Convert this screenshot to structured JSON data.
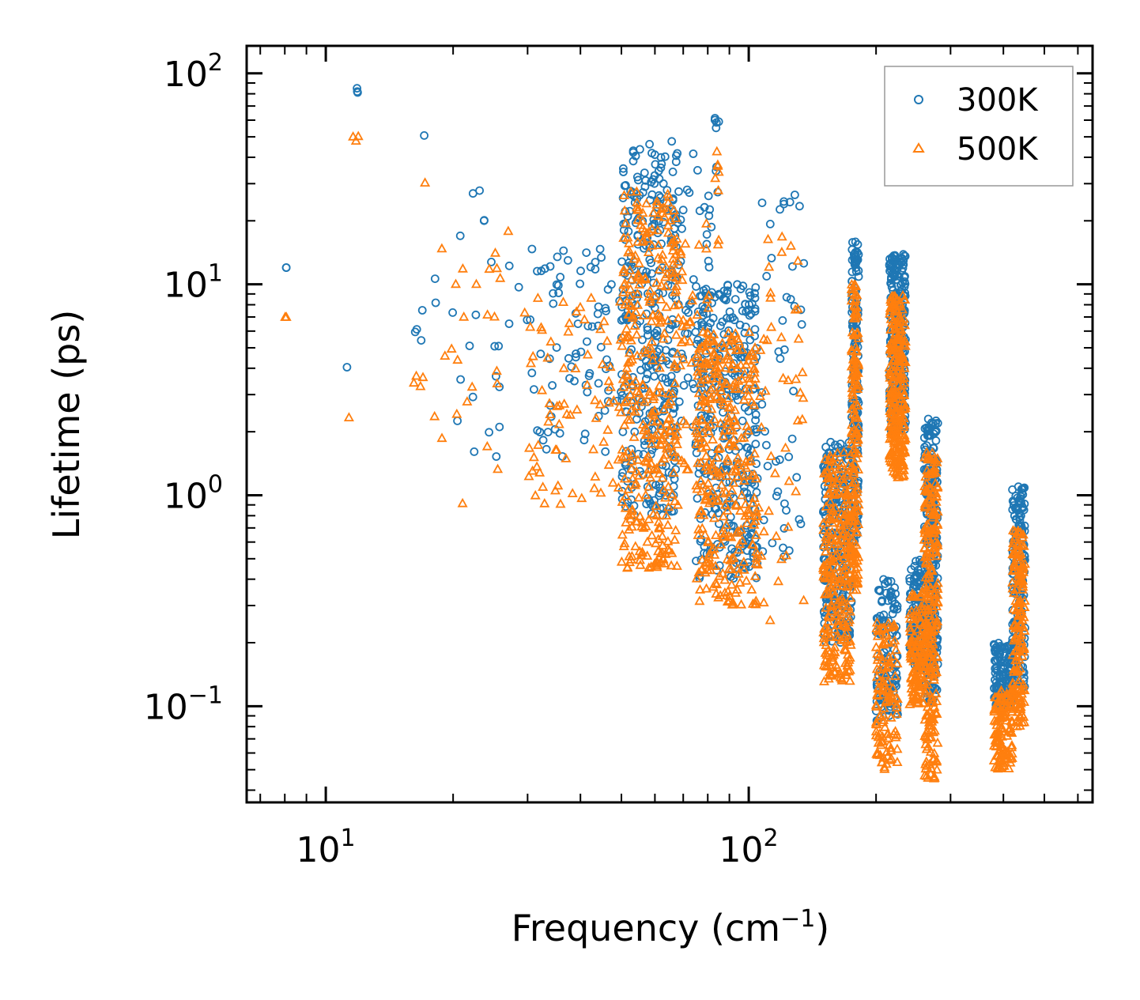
{
  "chart_data": {
    "type": "scatter",
    "title": "",
    "xlabel": "Frequency (cm",
    "xlabel_sup": "−1",
    "xlabel_end": ")",
    "ylabel": "Lifetime (ps)",
    "xscale": "log",
    "yscale": "log",
    "xlim": [
      6.5,
      650
    ],
    "ylim": [
      0.035,
      135
    ],
    "x_ticks": [
      {
        "value": 10,
        "base": "10",
        "exp": "1"
      },
      {
        "value": 100,
        "base": "10",
        "exp": "2"
      }
    ],
    "y_ticks": [
      {
        "value": 0.1,
        "base": "10",
        "exp": "−1"
      },
      {
        "value": 1,
        "base": "10",
        "exp": "0"
      },
      {
        "value": 10,
        "base": "10",
        "exp": "1"
      },
      {
        "value": 100,
        "base": "10",
        "exp": "2"
      }
    ],
    "legend_position": "top-right",
    "series": [
      {
        "name": "300K",
        "marker": "circle",
        "color": "#1f77b4",
        "points": []
      },
      {
        "name": "500K",
        "marker": "triangle",
        "color": "#ff7f0e",
        "points": []
      }
    ],
    "clusters": [
      {
        "series": 0,
        "x": [
          8,
          8.1
        ],
        "y": [
          12,
          12
        ],
        "n": 2
      },
      {
        "series": 1,
        "x": [
          8,
          8.1
        ],
        "y": [
          7,
          7
        ],
        "n": 2
      },
      {
        "series": 0,
        "x": [
          11.5,
          12
        ],
        "y": [
          80,
          86
        ],
        "n": 3
      },
      {
        "series": 1,
        "x": [
          11.5,
          12
        ],
        "y": [
          47,
          51
        ],
        "n": 3
      },
      {
        "series": 0,
        "x": [
          11.2,
          11.4
        ],
        "y": [
          4,
          4.1
        ],
        "n": 1
      },
      {
        "series": 1,
        "x": [
          11.2,
          11.4
        ],
        "y": [
          2.3,
          2.4
        ],
        "n": 1
      },
      {
        "series": 0,
        "x": [
          16,
          17
        ],
        "y": [
          5,
          8
        ],
        "n": 4
      },
      {
        "series": 1,
        "x": [
          16,
          17
        ],
        "y": [
          3,
          4.5
        ],
        "n": 4
      },
      {
        "series": 0,
        "x": [
          17,
          17.2
        ],
        "y": [
          49,
          51
        ],
        "n": 1
      },
      {
        "series": 1,
        "x": [
          17,
          17.2
        ],
        "y": [
          30,
          31
        ],
        "n": 1
      },
      {
        "series": 0,
        "x": [
          18,
          30
        ],
        "y": [
          1.5,
          32
        ],
        "n": 26
      },
      {
        "series": 1,
        "x": [
          18,
          30
        ],
        "y": [
          0.9,
          18
        ],
        "n": 26
      },
      {
        "series": 0,
        "x": [
          30,
          52
        ],
        "y": [
          1.5,
          15
        ],
        "n": 80
      },
      {
        "series": 1,
        "x": [
          30,
          52
        ],
        "y": [
          0.9,
          9
        ],
        "n": 80
      },
      {
        "series": 0,
        "x": [
          50,
          68
        ],
        "y": [
          0.8,
          48
        ],
        "n": 340
      },
      {
        "series": 1,
        "x": [
          50,
          68
        ],
        "y": [
          0.45,
          28
        ],
        "n": 340
      },
      {
        "series": 0,
        "x": [
          68,
          82
        ],
        "y": [
          1.5,
          42
        ],
        "n": 50
      },
      {
        "series": 1,
        "x": [
          68,
          82
        ],
        "y": [
          1,
          22
        ],
        "n": 50
      },
      {
        "series": 0,
        "x": [
          83,
          85
        ],
        "y": [
          25,
          70
        ],
        "n": 8
      },
      {
        "series": 1,
        "x": [
          83,
          85
        ],
        "y": [
          15,
          43
        ],
        "n": 8
      },
      {
        "series": 0,
        "x": [
          75,
          105
        ],
        "y": [
          0.4,
          10
        ],
        "n": 320
      },
      {
        "series": 1,
        "x": [
          75,
          105
        ],
        "y": [
          0.3,
          6
        ],
        "n": 320
      },
      {
        "series": 0,
        "x": [
          105,
          135
        ],
        "y": [
          0.45,
          27
        ],
        "n": 45
      },
      {
        "series": 1,
        "x": [
          105,
          135
        ],
        "y": [
          0.25,
          17
        ],
        "n": 45
      },
      {
        "series": 0,
        "x": [
          150,
          175
        ],
        "y": [
          0.2,
          1.8
        ],
        "n": 260
      },
      {
        "series": 1,
        "x": [
          150,
          175
        ],
        "y": [
          0.13,
          1.6
        ],
        "n": 260
      },
      {
        "series": 0,
        "x": [
          175,
          182
        ],
        "y": [
          0.6,
          16
        ],
        "n": 160
      },
      {
        "series": 1,
        "x": [
          175,
          182
        ],
        "y": [
          0.35,
          10
        ],
        "n": 160
      },
      {
        "series": 0,
        "x": [
          200,
          225
        ],
        "y": [
          0.085,
          0.4
        ],
        "n": 120
      },
      {
        "series": 1,
        "x": [
          200,
          225
        ],
        "y": [
          0.05,
          0.25
        ],
        "n": 120
      },
      {
        "series": 0,
        "x": [
          215,
          235
        ],
        "y": [
          2,
          14
        ],
        "n": 260
      },
      {
        "series": 1,
        "x": [
          215,
          235
        ],
        "y": [
          1.2,
          9
        ],
        "n": 260
      },
      {
        "series": 0,
        "x": [
          240,
          260
        ],
        "y": [
          0.15,
          0.5
        ],
        "n": 120
      },
      {
        "series": 1,
        "x": [
          240,
          260
        ],
        "y": [
          0.1,
          0.35
        ],
        "n": 120
      },
      {
        "series": 0,
        "x": [
          260,
          280
        ],
        "y": [
          0.1,
          2.3
        ],
        "n": 260
      },
      {
        "series": 1,
        "x": [
          260,
          280
        ],
        "y": [
          0.045,
          1.6
        ],
        "n": 260
      },
      {
        "series": 0,
        "x": [
          380,
          420
        ],
        "y": [
          0.1,
          0.2
        ],
        "n": 120
      },
      {
        "series": 1,
        "x": [
          380,
          420
        ],
        "y": [
          0.05,
          0.12
        ],
        "n": 120
      },
      {
        "series": 0,
        "x": [
          420,
          450
        ],
        "y": [
          0.12,
          1.1
        ],
        "n": 160
      },
      {
        "series": 1,
        "x": [
          420,
          450
        ],
        "y": [
          0.08,
          0.7
        ],
        "n": 160
      }
    ]
  }
}
